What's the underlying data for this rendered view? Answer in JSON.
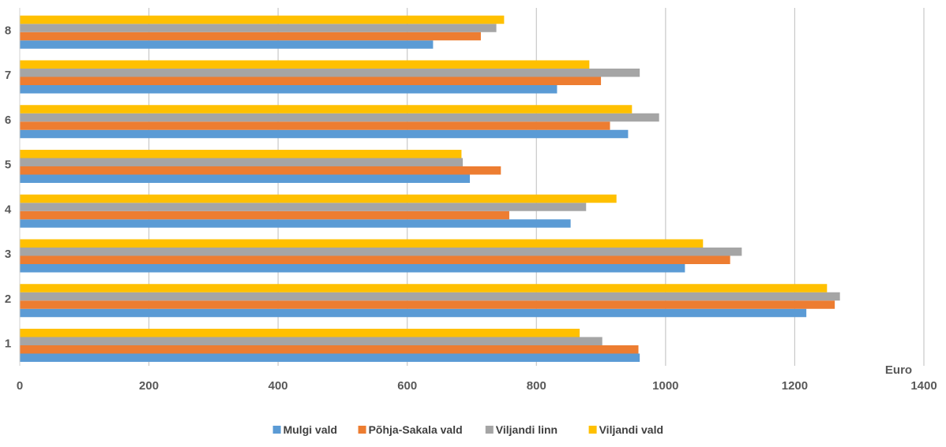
{
  "chart_data": {
    "type": "bar",
    "orientation": "horizontal",
    "categories": [
      "1",
      "2",
      "3",
      "4",
      "5",
      "6",
      "7",
      "8"
    ],
    "series": [
      {
        "name": "Mulgi vald",
        "color": "#5B9BD5",
        "values": [
          960,
          1218,
          1030,
          853,
          697,
          942,
          832,
          640
        ]
      },
      {
        "name": "Põhja-Sakala vald",
        "color": "#ED7D31",
        "values": [
          958,
          1262,
          1100,
          758,
          745,
          914,
          900,
          714
        ]
      },
      {
        "name": "Viljandi linn",
        "color": "#A5A5A5",
        "values": [
          902,
          1270,
          1118,
          877,
          686,
          990,
          960,
          738
        ]
      },
      {
        "name": "Viljandi vald",
        "color": "#FFC000",
        "values": [
          867,
          1250,
          1058,
          924,
          684,
          948,
          882,
          750
        ]
      }
    ],
    "xlim": [
      0,
      1400
    ],
    "xticks": [
      0,
      200,
      400,
      600,
      800,
      1000,
      1200,
      1400
    ],
    "xlabel": "Euro",
    "grid": true,
    "legend_position": "bottom"
  }
}
